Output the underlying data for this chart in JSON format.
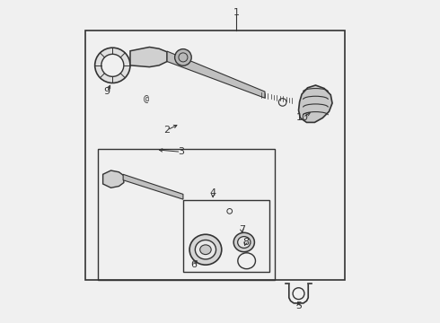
{
  "bg_color": "#f0f0f0",
  "line_color": "#333333",
  "figsize": [
    4.9,
    3.6
  ],
  "dpi": 100
}
